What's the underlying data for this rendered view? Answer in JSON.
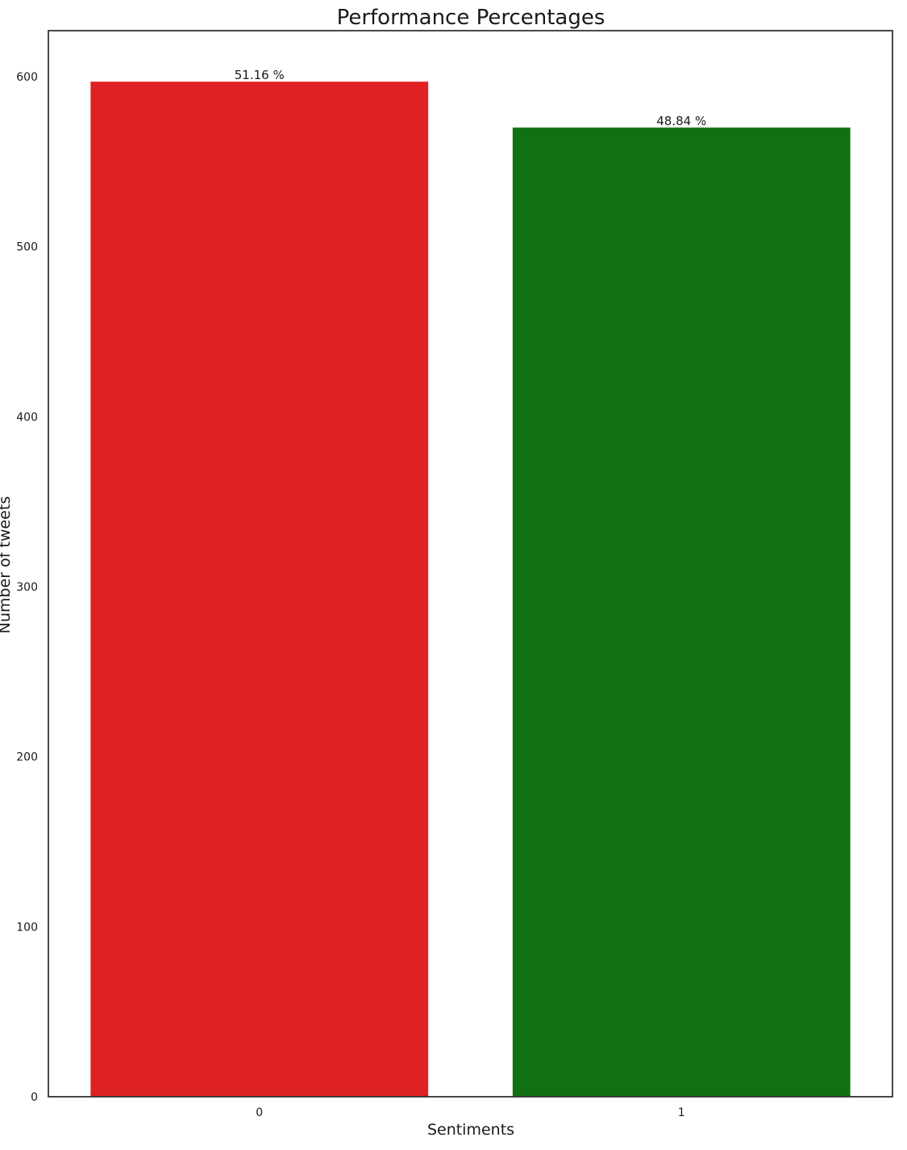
{
  "chart_data": {
    "type": "bar",
    "title": "Performance Percentages",
    "xlabel": "Sentiments",
    "ylabel": "Number of tweets",
    "categories": [
      "0",
      "1"
    ],
    "values": [
      597,
      570
    ],
    "data_labels": [
      "51.16 %",
      "48.84 %"
    ],
    "colors": [
      "#de2122",
      "#127014"
    ],
    "ylim": [
      0,
      627
    ],
    "yticks": [
      0,
      100,
      200,
      300,
      400,
      500,
      600
    ],
    "grid": false,
    "legend": "none"
  }
}
